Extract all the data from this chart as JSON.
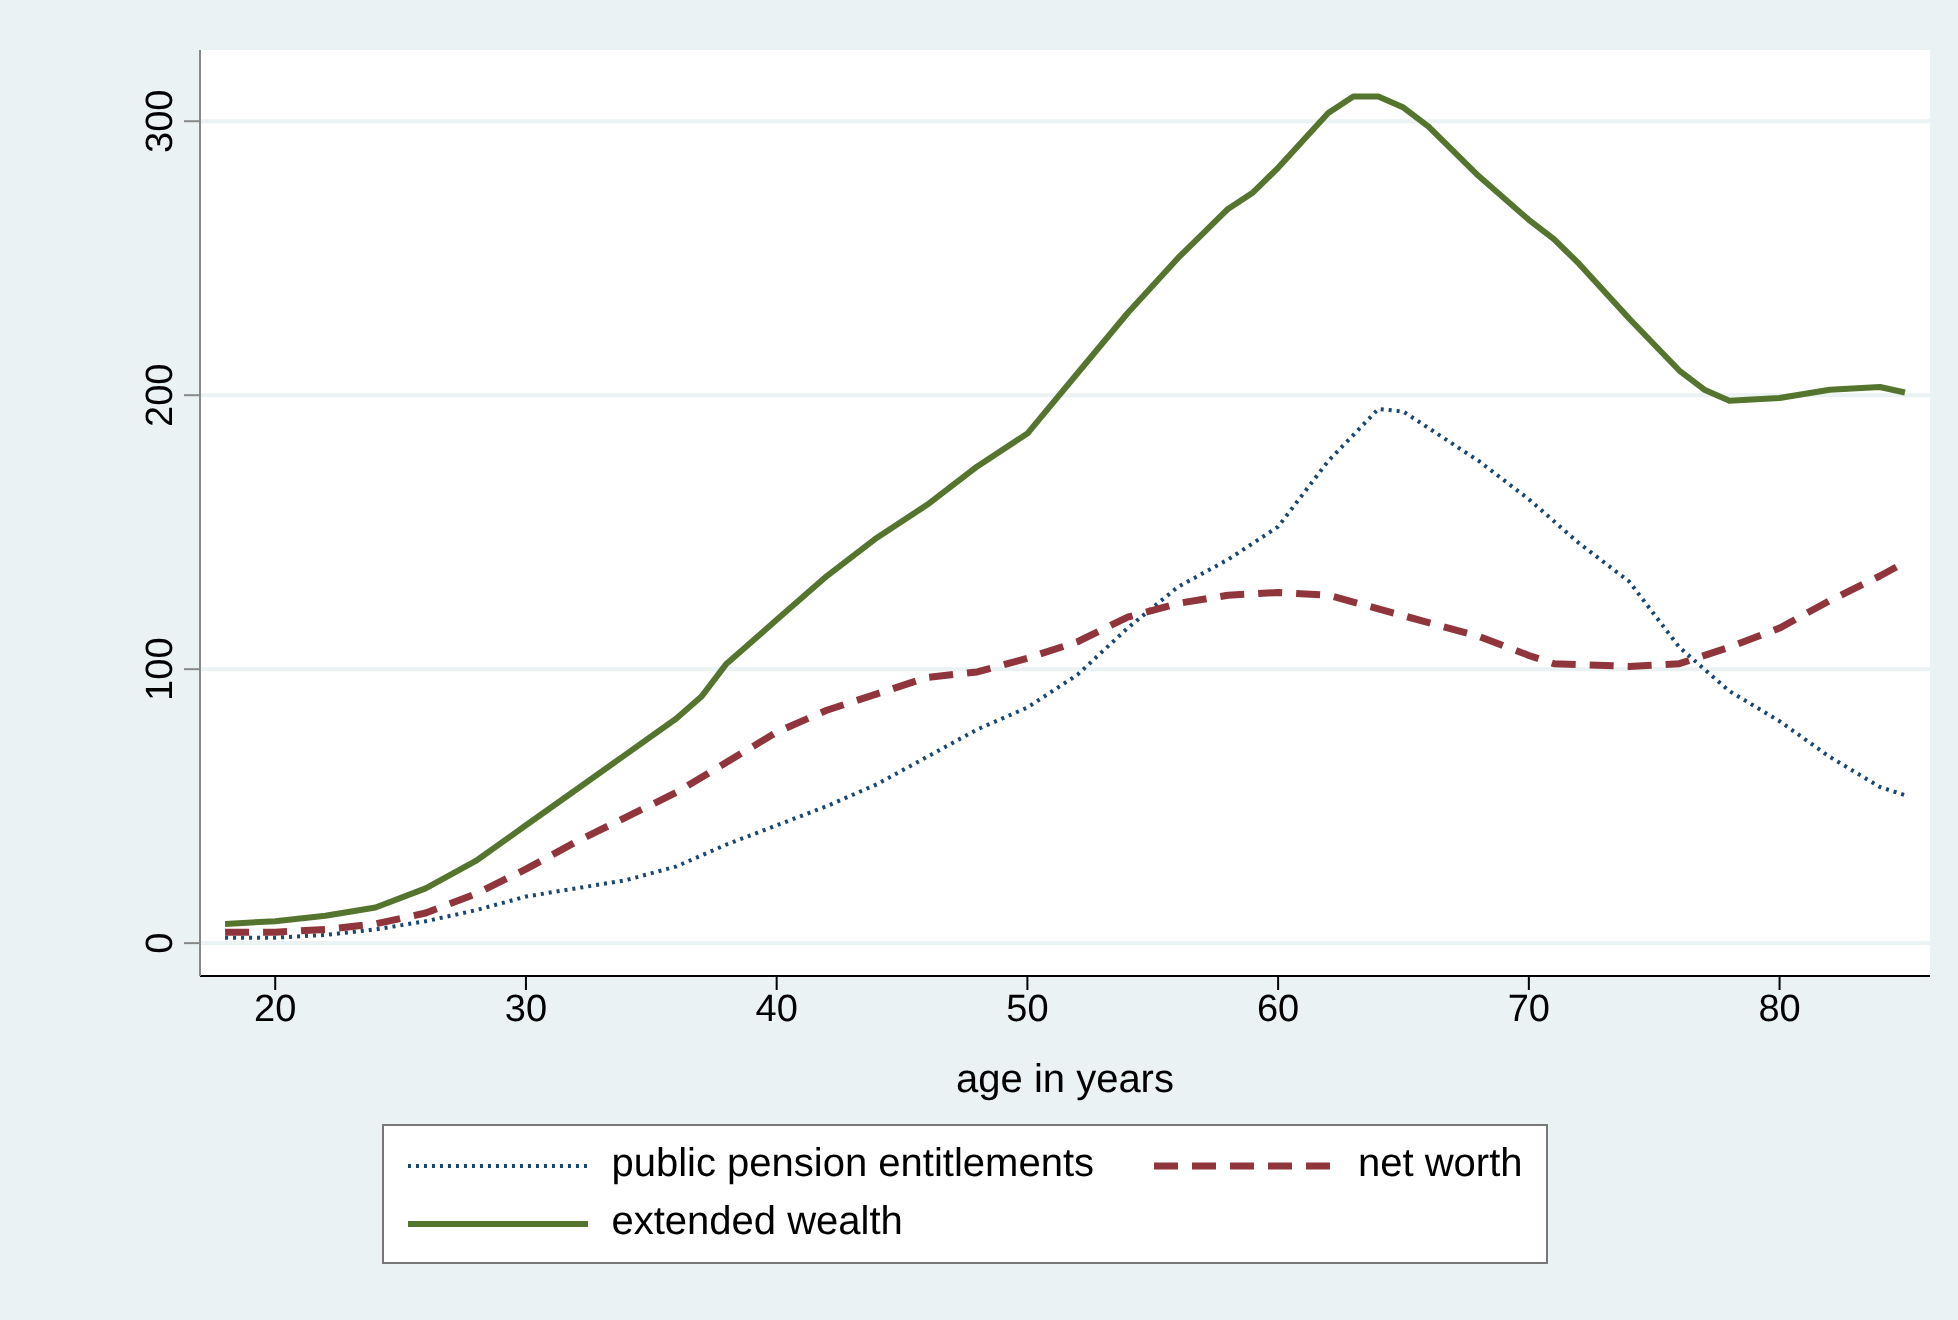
{
  "chart_data": {
    "type": "line",
    "xlabel": "age in years",
    "xlim": [
      17,
      86
    ],
    "xticks": [
      20,
      30,
      40,
      50,
      60,
      70,
      80
    ],
    "ylim": [
      -12,
      326
    ],
    "yticks": [
      0,
      100,
      200,
      300
    ],
    "grid": "y",
    "legend": "bottom",
    "marker": "none",
    "series": [
      {
        "name": "public pension entitlements",
        "color": "#1a476f",
        "line_style": "dotted",
        "x": [
          18,
          20,
          22,
          24,
          26,
          28,
          30,
          32,
          34,
          36,
          38,
          40,
          42,
          44,
          46,
          48,
          50,
          52,
          54,
          56,
          58,
          60,
          62,
          64,
          65,
          66,
          68,
          70,
          72,
          74,
          76,
          78,
          80,
          82,
          84,
          85
        ],
        "values": [
          2,
          2,
          3,
          5,
          8,
          12,
          17,
          20,
          23,
          28,
          36,
          43,
          50,
          58,
          68,
          78,
          86,
          98,
          115,
          130,
          140,
          152,
          176,
          195,
          194,
          188,
          176,
          162,
          146,
          132,
          108,
          92,
          81,
          68,
          57,
          54
        ]
      },
      {
        "name": "net worth",
        "color": "#90353b",
        "line_style": "dashed",
        "x": [
          18,
          20,
          22,
          24,
          26,
          28,
          30,
          32,
          34,
          36,
          38,
          40,
          42,
          44,
          46,
          48,
          50,
          52,
          54,
          56,
          58,
          60,
          62,
          64,
          66,
          68,
          70,
          71,
          74,
          76,
          78,
          80,
          82,
          84,
          85
        ],
        "values": [
          4,
          4,
          5,
          7,
          11,
          18,
          27,
          37,
          46,
          55,
          66,
          77,
          85,
          91,
          97,
          99,
          104,
          110,
          119,
          124,
          127,
          128,
          127,
          122,
          117,
          112,
          105,
          102,
          101,
          102,
          108,
          115,
          125,
          134,
          139
        ]
      },
      {
        "name": "extended wealth",
        "color": "#55752f",
        "line_style": "solid",
        "x": [
          18,
          20,
          22,
          24,
          26,
          28,
          30,
          32,
          34,
          36,
          37,
          38,
          40,
          42,
          44,
          46,
          48,
          50,
          51,
          52,
          54,
          56,
          58,
          59,
          60,
          62,
          63,
          64,
          65,
          66,
          68,
          70,
          71,
          72,
          74,
          76,
          77,
          78,
          80,
          82,
          84,
          85
        ],
        "values": [
          7,
          8,
          10,
          13,
          20,
          30,
          43,
          56,
          69,
          82,
          90,
          102,
          118,
          134,
          148,
          160,
          174,
          186,
          197,
          208,
          230,
          250,
          268,
          274,
          283,
          303,
          309,
          309,
          305,
          298,
          280,
          264,
          257,
          248,
          228,
          209,
          202,
          198,
          199,
          202,
          203,
          201
        ]
      }
    ]
  }
}
